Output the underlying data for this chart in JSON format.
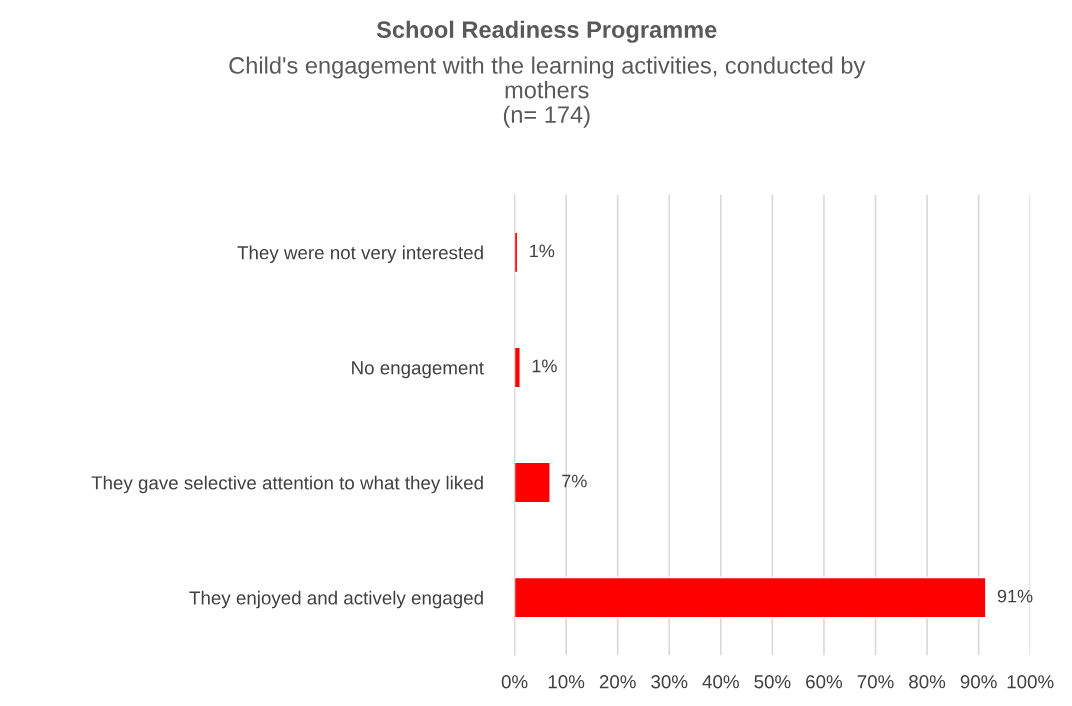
{
  "chart_data": {
    "type": "bar",
    "orientation": "horizontal",
    "title": "School Readiness Programme",
    "subtitle": "Child's engagement with the learning activities, conducted by\nmothers\n(n= 174)",
    "categories": [
      "They were not very interested",
      "No engagement",
      "They gave selective attention to what they liked",
      "They enjoyed and actively engaged"
    ],
    "values": [
      0.6,
      1.1,
      6.9,
      91.4
    ],
    "value_labels": [
      "1%",
      "1%",
      "7%",
      "91%"
    ],
    "color": "#ff0000",
    "xlim": [
      0,
      100
    ],
    "xticks": [
      {
        "value": 0,
        "label": "0%"
      },
      {
        "value": 10,
        "label": "10%"
      },
      {
        "value": 20,
        "label": "20%"
      },
      {
        "value": 30,
        "label": "30%"
      },
      {
        "value": 40,
        "label": "40%"
      },
      {
        "value": 50,
        "label": "50%"
      },
      {
        "value": 60,
        "label": "60%"
      },
      {
        "value": 70,
        "label": "70%"
      },
      {
        "value": 80,
        "label": "80%"
      },
      {
        "value": 90,
        "label": "90%"
      },
      {
        "value": 100,
        "label": "100%"
      }
    ],
    "grid": "x"
  }
}
